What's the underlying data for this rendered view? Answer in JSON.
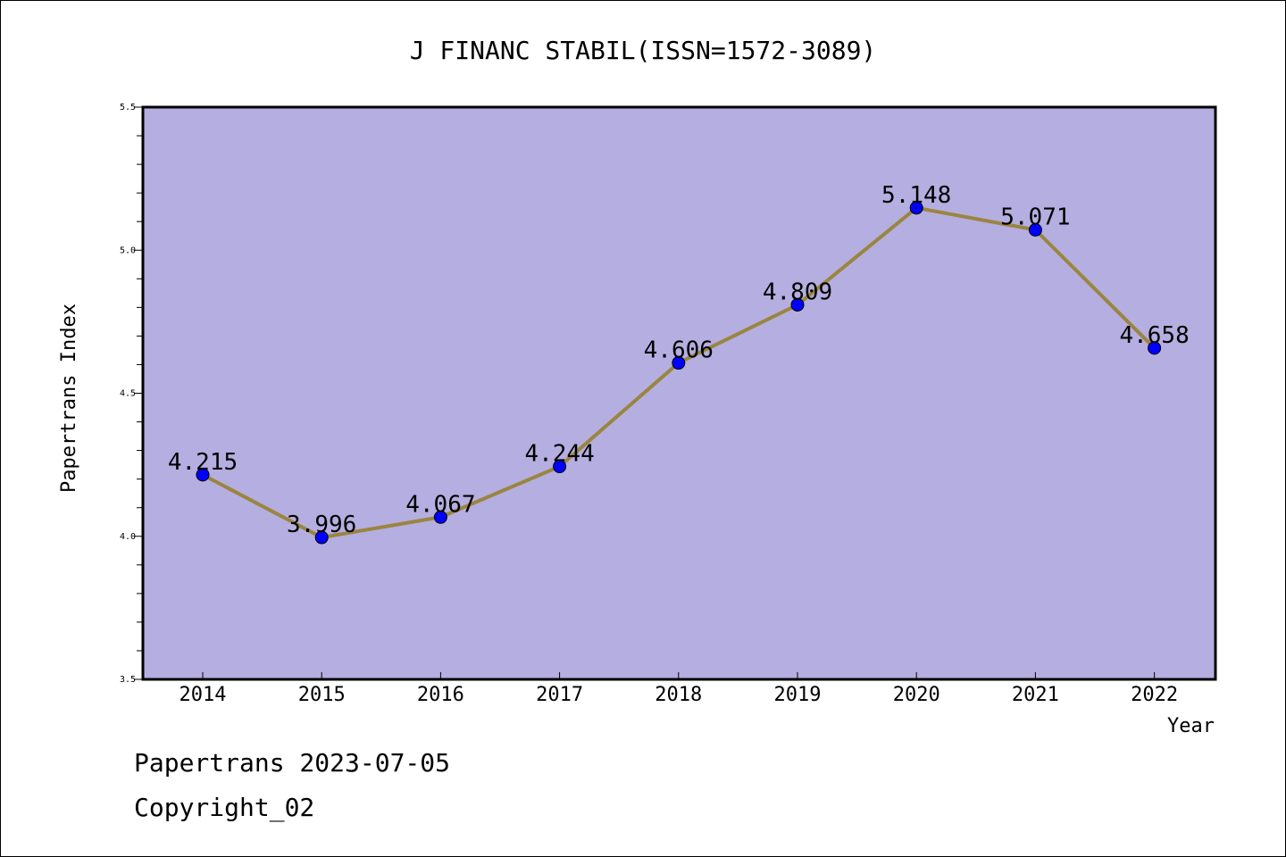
{
  "chart_data": {
    "type": "line",
    "title": "J FINANC STABIL(ISSN=1572-3089)",
    "xlabel": "Year",
    "ylabel": "Papertrans Index",
    "categories": [
      "2014",
      "2015",
      "2016",
      "2017",
      "2018",
      "2019",
      "2020",
      "2021",
      "2022"
    ],
    "series": [
      {
        "values": [
          4.215,
          3.996,
          4.067,
          4.244,
          4.606,
          4.809,
          5.148,
          5.071,
          4.658
        ]
      }
    ],
    "data_labels": [
      "4.215",
      "3.996",
      "4.067",
      "4.244",
      "4.606",
      "4.809",
      "5.148",
      "5.071",
      "4.658"
    ],
    "ylim": [
      3.5,
      5.5
    ],
    "yticks": [
      "3.5",
      "4.0",
      "4.5",
      "5.0",
      "5.5"
    ],
    "grid": false,
    "colors": {
      "plot_background": "#b5aee0",
      "line": "#9a8540",
      "marker": "#0000ff"
    }
  },
  "footer": {
    "date_line": "Papertrans 2023-07-05",
    "copyright": "Copyright_02"
  }
}
